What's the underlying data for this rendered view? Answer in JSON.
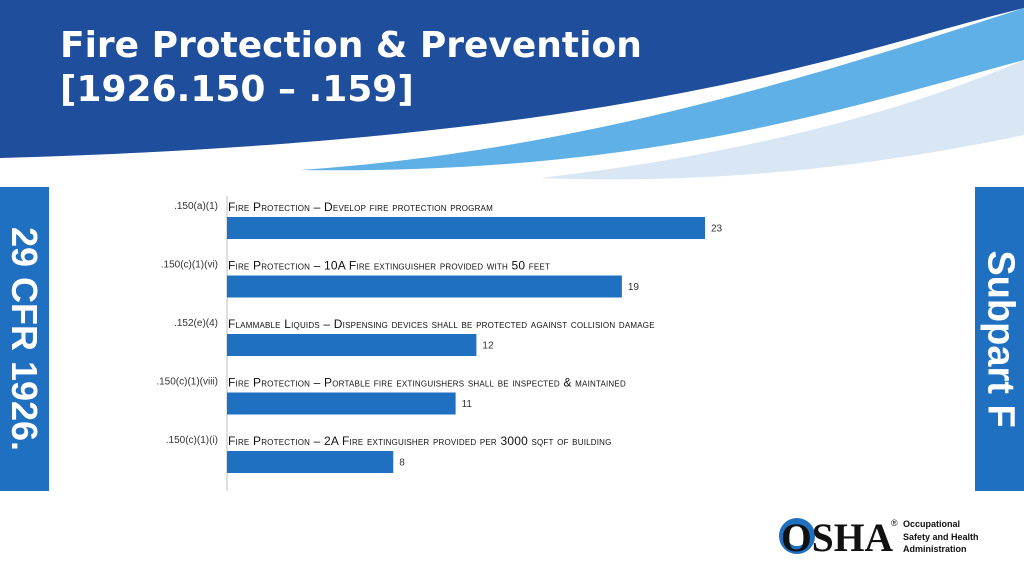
{
  "slide": {
    "title_line1": "Fire Protection & Prevention",
    "title_line2": "[1926.150 – .159]",
    "left_tab": "29 CFR 1926.",
    "right_tab": "Subpart F"
  },
  "logo": {
    "mark": "OSHA",
    "registered": "®",
    "line1": "Occupational",
    "line2": "Safety and Health",
    "line3": "Administration"
  },
  "colors": {
    "bar": "#1f70c1",
    "header_dark": "#1f4e9c",
    "header_light": "#5fb0e6",
    "side_tab": "#1f70c1"
  },
  "chart_data": {
    "type": "bar",
    "orientation": "horizontal",
    "categories": [
      ".150(a)(1)",
      ".150(c)(1)(vi)",
      ".152(e)(4)",
      ".150(c)(1)(viii)",
      ".150(c)(1)(i)"
    ],
    "descriptions": [
      "Fire Protection – Develop fire protection program",
      "Fire Protection – 10A Fire extinguisher provided with 50 feet",
      "Flammable Liquids –  Dispensing devices shall be protected against collision damage",
      "Fire Protection – Portable fire extinguishers shall be inspected & maintained",
      "Fire Protection – 2A Fire extinguisher provided per 3000 sqft of building"
    ],
    "values": [
      23,
      19,
      12,
      11,
      8
    ],
    "xlim": [
      0,
      24
    ],
    "grid": false,
    "legend": "none"
  }
}
